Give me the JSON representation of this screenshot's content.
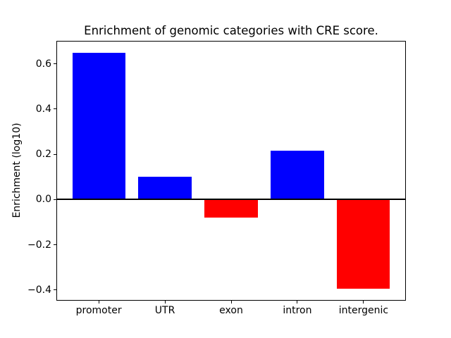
{
  "chart_data": {
    "type": "bar",
    "title": "Enrichment of genomic categories with CRE score.",
    "ylabel": "Enrichment (log10)",
    "xlabel": "",
    "categories": [
      "promoter",
      "UTR",
      "exon",
      "intron",
      "intergenic"
    ],
    "values": [
      0.65,
      0.1,
      -0.08,
      0.215,
      -0.395
    ],
    "bar_colors": [
      "#0000ff",
      "#0000ff",
      "#ff0000",
      "#0000ff",
      "#ff0000"
    ],
    "positive_color": "#0000ff",
    "negative_color": "#ff0000",
    "yticks": [
      {
        "value": 0.6,
        "label": "0.6"
      },
      {
        "value": 0.4,
        "label": "0.4"
      },
      {
        "value": 0.2,
        "label": "0.2"
      },
      {
        "value": 0.0,
        "label": "0.0"
      },
      {
        "value": -0.2,
        "label": "−0.2"
      },
      {
        "value": -0.4,
        "label": "−0.4"
      }
    ],
    "ylim": [
      -0.447,
      0.702
    ],
    "xlim": [
      -0.64,
      4.64
    ],
    "bar_width": 0.8,
    "zero_line": true,
    "grid": false,
    "legend": null,
    "spine_color": "#000000",
    "background_color": "#ffffff"
  }
}
